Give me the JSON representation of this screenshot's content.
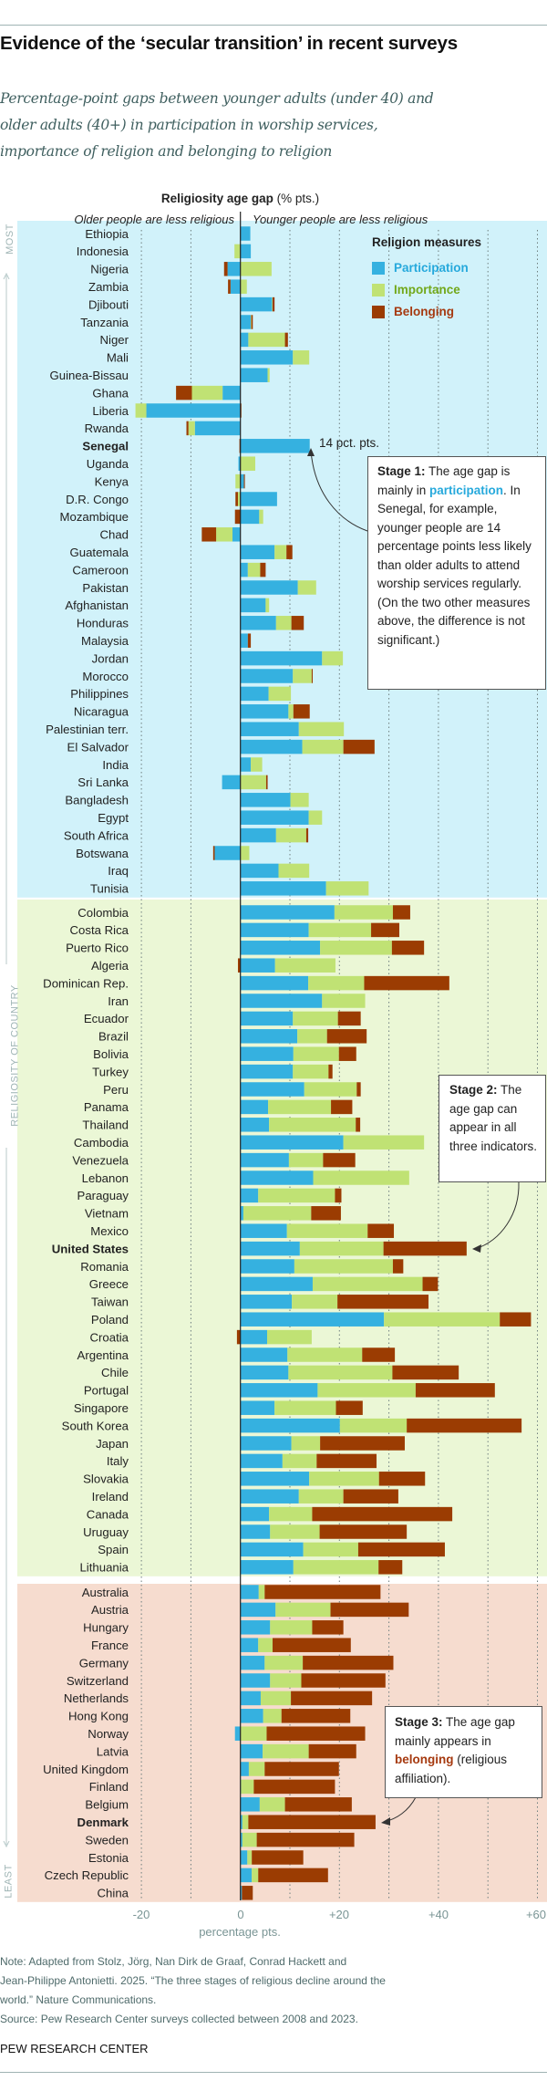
{
  "header": {
    "title": "Evidence of the ‘secular transition’ in recent surveys",
    "subtitle_lines": [
      "Percentage-point gaps between younger adults (under 40) and",
      "older adults (40+) in participation in worship services,",
      "importance of religion and belonging to religion"
    ]
  },
  "chart_data": {
    "type": "bar",
    "orientation": "horizontal",
    "stacked": true,
    "title_bold": "Religiosity age gap",
    "title_rest": "(% pts.)",
    "left_side_label": "Older people are less religious",
    "right_side_label": "Younger people are less religious",
    "xlabel": "percentage pts.",
    "xlim": [
      -20,
      60
    ],
    "xticks": [
      -20,
      0,
      20,
      40,
      60
    ],
    "xtick_labels": [
      "-20",
      "0",
      "+20",
      "+40",
      "+60"
    ],
    "grid": "dotted every 10",
    "ylabel": "RELIGIOSITY OF COUNTRY",
    "ylabel_top": "MOST",
    "ylabel_bottom": "LEAST",
    "legend": {
      "title": "Religion measures",
      "placement": "top-right"
    },
    "series": [
      {
        "name": "Participation",
        "color": "#35b1e0",
        "text_color": "#26a9dc"
      },
      {
        "name": "Importance",
        "color": "#c0e274",
        "text_color": "#72a81a"
      },
      {
        "name": "Belonging",
        "color": "#9b3c02",
        "text_color": "#a63a10"
      }
    ],
    "groups": [
      {
        "stage": "Stage 1",
        "background": "#d1f2fa",
        "rows": [
          {
            "country": "Ethiopia",
            "values": [
              2.0,
              0,
              0
            ]
          },
          {
            "country": "Indonesia",
            "values": [
              2.1,
              -1.2,
              0
            ]
          },
          {
            "country": "Nigeria",
            "values": [
              -2.6,
              6.3,
              -0.7
            ]
          },
          {
            "country": "Zambia",
            "values": [
              -2.0,
              1.3,
              -0.5
            ]
          },
          {
            "country": "Djibouti",
            "values": [
              6.4,
              0.1,
              0.4
            ]
          },
          {
            "country": "Tanzania",
            "values": [
              2.1,
              0.1,
              0.3
            ]
          },
          {
            "country": "Niger",
            "values": [
              1.6,
              7.4,
              0.6
            ]
          },
          {
            "country": "Mali",
            "values": [
              10.6,
              3.3,
              0
            ]
          },
          {
            "country": "Guinea-Bissau",
            "values": [
              5.5,
              0.4,
              0
            ]
          },
          {
            "country": "Ghana",
            "values": [
              -3.6,
              -6.2,
              -3.2
            ]
          },
          {
            "country": "Liberia",
            "values": [
              -19.0,
              -2.2,
              0.2
            ]
          },
          {
            "country": "Rwanda",
            "values": [
              -9.2,
              -1.3,
              -0.4
            ]
          },
          {
            "country": "Senegal",
            "values": [
              14.0,
              0,
              -0.2
            ],
            "highlight": true
          },
          {
            "country": "Uganda",
            "values": [
              -0.4,
              3.0,
              0
            ]
          },
          {
            "country": "Kenya",
            "values": [
              0.7,
              -1.0,
              0.2
            ]
          },
          {
            "country": "D.R. Congo",
            "values": [
              7.4,
              -0.5,
              -0.5
            ]
          },
          {
            "country": "Mozambique",
            "values": [
              3.8,
              0.8,
              -1.1
            ]
          },
          {
            "country": "Chad",
            "values": [
              -1.6,
              -3.3,
              -2.9
            ]
          },
          {
            "country": "Guatemala",
            "values": [
              6.9,
              2.4,
              1.2
            ]
          },
          {
            "country": "Cameroon",
            "values": [
              1.5,
              2.5,
              1.1
            ]
          },
          {
            "country": "Pakistan",
            "values": [
              11.6,
              3.7,
              0
            ]
          },
          {
            "country": "Afghanistan",
            "values": [
              5.1,
              0.7,
              0
            ]
          },
          {
            "country": "Honduras",
            "values": [
              7.2,
              3.1,
              2.5
            ]
          },
          {
            "country": "Malaysia",
            "values": [
              1.5,
              0,
              0.6
            ]
          },
          {
            "country": "Jordan",
            "values": [
              16.5,
              4.2,
              0
            ]
          },
          {
            "country": "Morocco",
            "values": [
              10.6,
              3.8,
              0.2
            ]
          },
          {
            "country": "Philippines",
            "values": [
              5.7,
              4.5,
              0
            ]
          },
          {
            "country": "Nicaragua",
            "values": [
              9.7,
              1.0,
              3.3
            ]
          },
          {
            "country": "Palestinian terr.",
            "values": [
              11.8,
              9.1,
              0
            ]
          },
          {
            "country": "El Salvador",
            "values": [
              12.5,
              8.3,
              6.3
            ]
          },
          {
            "country": "India",
            "values": [
              2.1,
              2.3,
              0
            ]
          },
          {
            "country": "Sri Lanka",
            "values": [
              -3.7,
              5.2,
              0.3
            ]
          },
          {
            "country": "Bangladesh",
            "values": [
              10.1,
              3.7,
              0
            ]
          },
          {
            "country": "Egypt",
            "values": [
              13.8,
              2.7,
              0
            ]
          },
          {
            "country": "South Africa",
            "values": [
              7.2,
              6.1,
              0.4
            ]
          },
          {
            "country": "Botswana",
            "values": [
              -5.2,
              1.8,
              -0.3
            ]
          },
          {
            "country": "Iraq",
            "values": [
              7.7,
              6.2,
              0
            ]
          },
          {
            "country": "Tunisia",
            "values": [
              17.3,
              8.6,
              0
            ]
          }
        ]
      },
      {
        "stage": "Stage 2",
        "background": "#ebf7d6",
        "rows": [
          {
            "country": "Colombia",
            "values": [
              19.0,
              11.8,
              3.5
            ]
          },
          {
            "country": "Costa Rica",
            "values": [
              13.8,
              12.6,
              5.7
            ]
          },
          {
            "country": "Puerto Rico",
            "values": [
              16.1,
              14.5,
              6.5
            ]
          },
          {
            "country": "Algeria",
            "values": [
              7.0,
              12.2,
              -0.5
            ]
          },
          {
            "country": "Dominican Rep.",
            "values": [
              13.7,
              11.3,
              17.2
            ]
          },
          {
            "country": "Iran",
            "values": [
              16.5,
              8.7,
              0
            ]
          },
          {
            "country": "Ecuador",
            "values": [
              10.6,
              9.1,
              4.6
            ]
          },
          {
            "country": "Brazil",
            "values": [
              11.5,
              6.0,
              8.0
            ]
          },
          {
            "country": "Bolivia",
            "values": [
              10.7,
              9.2,
              3.5
            ]
          },
          {
            "country": "Turkey",
            "values": [
              10.6,
              7.2,
              0.8
            ]
          },
          {
            "country": "Peru",
            "values": [
              12.9,
              10.6,
              0.8
            ]
          },
          {
            "country": "Panama",
            "values": [
              5.6,
              12.7,
              4.3
            ]
          },
          {
            "country": "Thailand",
            "values": [
              5.8,
              17.5,
              0.9
            ]
          },
          {
            "country": "Cambodia",
            "values": [
              20.8,
              16.3,
              0
            ]
          },
          {
            "country": "Venezuela",
            "values": [
              9.8,
              6.9,
              6.5
            ]
          },
          {
            "country": "Lebanon",
            "values": [
              14.7,
              19.4,
              0
            ]
          },
          {
            "country": "Paraguay",
            "values": [
              3.6,
              15.5,
              1.3
            ]
          },
          {
            "country": "Vietnam",
            "values": [
              0.6,
              13.7,
              6.0
            ]
          },
          {
            "country": "Mexico",
            "values": [
              9.4,
              16.3,
              5.3
            ]
          },
          {
            "country": "United States",
            "values": [
              12.0,
              16.9,
              16.8
            ],
            "highlight": true
          },
          {
            "country": "Romania",
            "values": [
              10.9,
              19.9,
              2.1
            ]
          },
          {
            "country": "Greece",
            "values": [
              14.6,
              22.2,
              3.1
            ]
          },
          {
            "country": "Taiwan",
            "values": [
              10.4,
              9.2,
              18.4
            ]
          },
          {
            "country": "Poland",
            "values": [
              29.0,
              23.4,
              6.3
            ]
          },
          {
            "country": "Croatia",
            "values": [
              5.4,
              9.0,
              -0.7
            ]
          },
          {
            "country": "Argentina",
            "values": [
              9.5,
              15.1,
              6.6
            ]
          },
          {
            "country": "Chile",
            "values": [
              9.7,
              21.0,
              13.4
            ]
          },
          {
            "country": "Portugal",
            "values": [
              15.6,
              19.8,
              16.0
            ]
          },
          {
            "country": "Singapore",
            "values": [
              6.9,
              12.4,
              5.4
            ]
          },
          {
            "country": "South Korea",
            "values": [
              20.1,
              13.5,
              23.2
            ]
          },
          {
            "country": "Japan",
            "values": [
              10.3,
              5.8,
              17.1
            ]
          },
          {
            "country": "Italy",
            "values": [
              8.5,
              6.9,
              12.1
            ]
          },
          {
            "country": "Slovakia",
            "values": [
              13.9,
              14.1,
              9.3
            ]
          },
          {
            "country": "Ireland",
            "values": [
              11.8,
              9.0,
              11.1
            ]
          },
          {
            "country": "Canada",
            "values": [
              5.8,
              8.7,
              28.3
            ]
          },
          {
            "country": "Uruguay",
            "values": [
              6.0,
              10.0,
              17.6
            ]
          },
          {
            "country": "Spain",
            "values": [
              12.7,
              11.1,
              17.5
            ]
          },
          {
            "country": "Lithuania",
            "values": [
              10.7,
              17.2,
              4.8
            ]
          }
        ]
      },
      {
        "stage": "Stage 3",
        "background": "#f6dccf",
        "rows": [
          {
            "country": "Australia",
            "values": [
              3.7,
              1.2,
              23.4
            ]
          },
          {
            "country": "Austria",
            "values": [
              7.1,
              11.1,
              15.8
            ]
          },
          {
            "country": "Hungary",
            "values": [
              6.0,
              8.5,
              6.3
            ]
          },
          {
            "country": "France",
            "values": [
              3.6,
              2.9,
              15.8
            ]
          },
          {
            "country": "Germany",
            "values": [
              4.9,
              7.7,
              18.3
            ]
          },
          {
            "country": "Switzerland",
            "values": [
              6.0,
              6.3,
              17.0
            ]
          },
          {
            "country": "Netherlands",
            "values": [
              4.1,
              6.1,
              16.4
            ]
          },
          {
            "country": "Hong Kong",
            "values": [
              4.6,
              3.7,
              13.9
            ]
          },
          {
            "country": "Norway",
            "values": [
              -1.1,
              5.3,
              19.9
            ]
          },
          {
            "country": "Latvia",
            "values": [
              4.5,
              9.3,
              9.6
            ]
          },
          {
            "country": "United Kingdom",
            "values": [
              1.7,
              3.2,
              15.0
            ]
          },
          {
            "country": "Finland",
            "values": [
              0.1,
              2.6,
              16.4
            ]
          },
          {
            "country": "Belgium",
            "values": [
              3.9,
              5.1,
              13.5
            ]
          },
          {
            "country": "Denmark",
            "values": [
              0.4,
              1.2,
              25.7
            ],
            "highlight": true
          },
          {
            "country": "Sweden",
            "values": [
              0.4,
              2.9,
              19.7
            ]
          },
          {
            "country": "Estonia",
            "values": [
              1.4,
              0.9,
              10.4
            ]
          },
          {
            "country": "Czech Republic",
            "values": [
              2.3,
              1.3,
              14.1
            ]
          },
          {
            "country": "China",
            "values": [
              0.3,
              0,
              2.2
            ]
          }
        ]
      }
    ],
    "annotations": {
      "senegal_label": "14 pct. pts.",
      "stage1": {
        "bold": "Stage 1:",
        "text1": " The age gap is mainly in ",
        "keyword": "participation",
        "text2": ". In Senegal, for example, younger people are 14 percentage points less likely than older adults to attend worship services regularly. (On the two other measures above, the difference is not significant.)"
      },
      "stage2": {
        "bold": "Stage 2:",
        "text1": " The age gap can appear in all three indicators."
      },
      "stage3": {
        "bold": "Stage 3:",
        "text1": " The age gap mainly appears in ",
        "keyword": "belonging",
        "text2": " (religious affiliation)."
      }
    }
  },
  "footer": {
    "note_lines": [
      "Note: Adapted from Stolz, Jörg, Nan Dirk de Graaf, Conrad Hackett and",
      "Jean-Philippe Antonietti. 2025. “The three stages of religious decline around the",
      "world.” Nature Communications.",
      "Source: Pew Research Center surveys collected between 2008 and 2023."
    ],
    "brand": "PEW RESEARCH CENTER"
  }
}
